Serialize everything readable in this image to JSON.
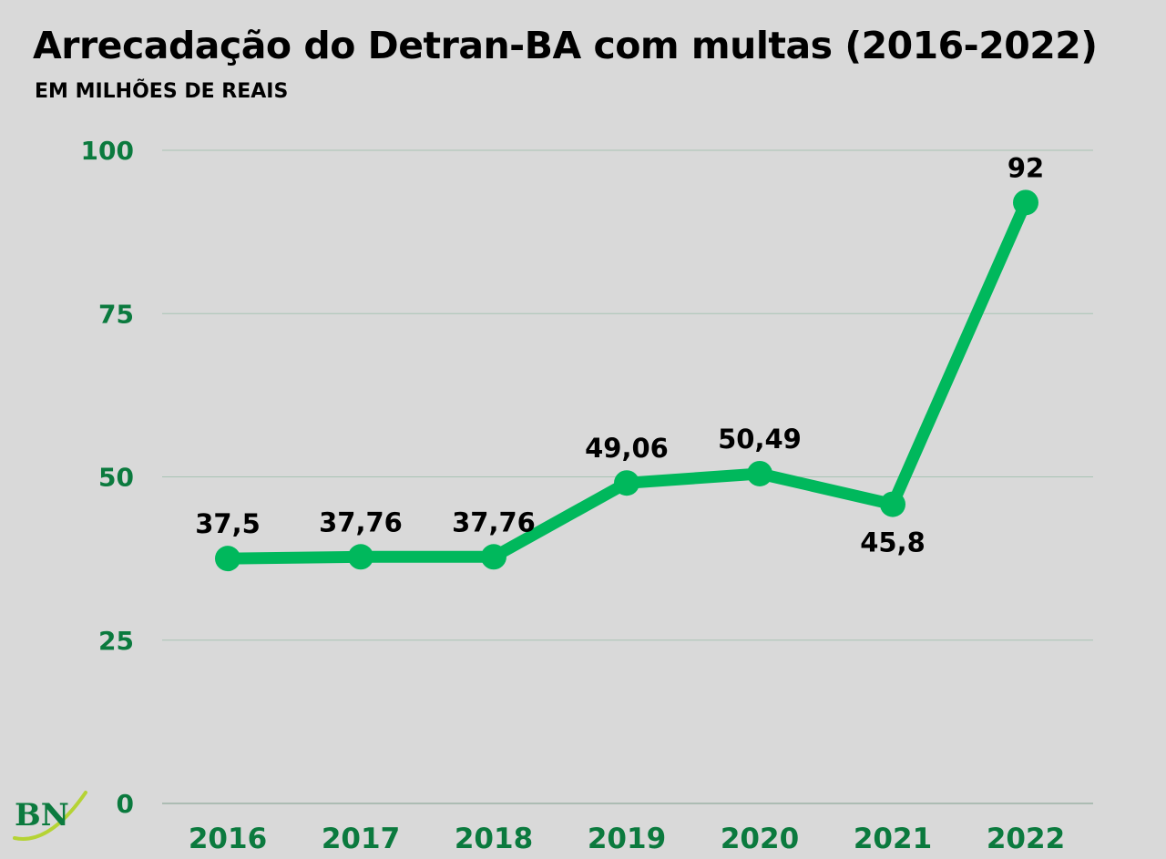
{
  "header": {
    "title": "Arrecadação do Detran-BA com multas (2016-2022)",
    "subtitle": "EM MILHÕES DE REAIS"
  },
  "colors": {
    "background": "#d9d9d9",
    "line": "#00b85c",
    "axis_text": "#0b7a3e",
    "gridline": "#a9c4b4",
    "label": "#000000"
  },
  "logo": {
    "text": "BN",
    "icon": "bn-logo-icon"
  },
  "chart_data": {
    "type": "line",
    "categories": [
      "2016",
      "2017",
      "2018",
      "2019",
      "2020",
      "2021",
      "2022"
    ],
    "series": [
      {
        "values": [
          37.5,
          37.76,
          37.76,
          49.06,
          50.49,
          45.8,
          92
        ],
        "data_labels": [
          "37,5",
          "37,76",
          "37,76",
          "49,06",
          "50,49",
          "45,8",
          "92"
        ]
      }
    ],
    "y_ticks": [
      "0",
      "25",
      "50",
      "75",
      "100"
    ],
    "ylim": [
      0,
      100
    ],
    "grid": true,
    "title": "Arrecadação do Detran-BA com multas (2016-2022)",
    "subtitle": "EM MILHÕES DE REAIS",
    "xlabel": "",
    "ylabel": ""
  }
}
